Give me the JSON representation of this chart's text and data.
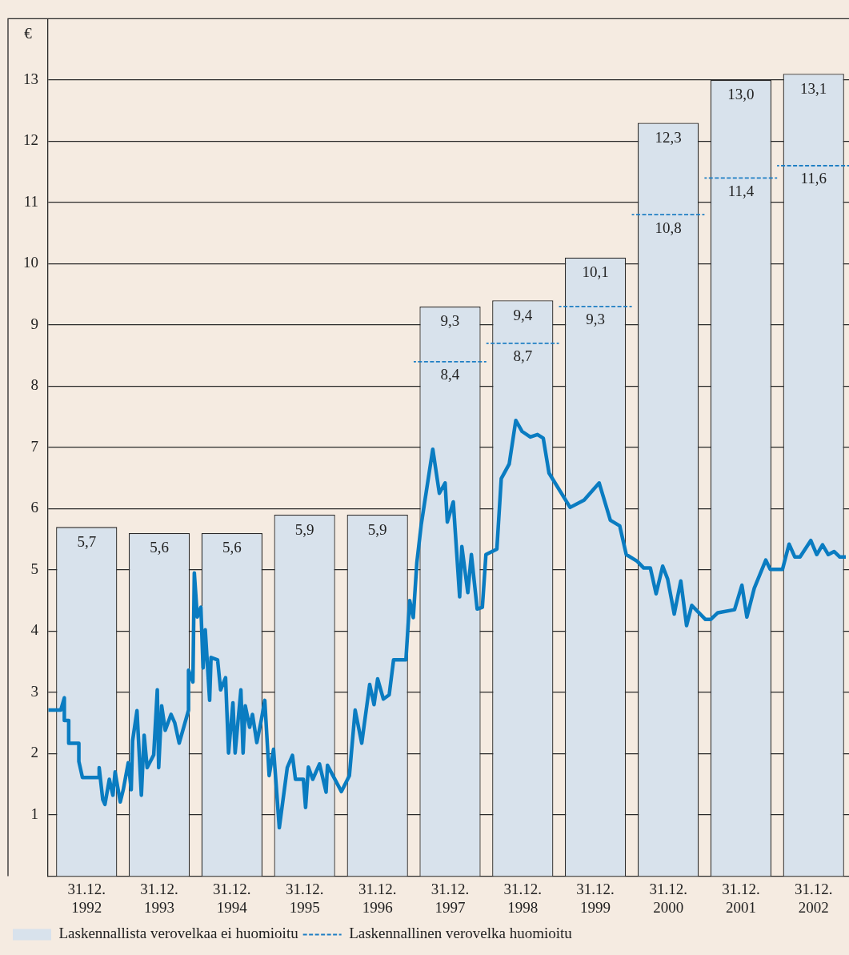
{
  "chart_data": {
    "type": "bar",
    "ylabel": "€",
    "x": [
      "1992-12-31",
      "1993-12-31",
      "1994-12-31",
      "1995-12-31",
      "1996-12-31",
      "1997-12-31",
      "1998-12-31",
      "1999-12-31",
      "2000-12-31",
      "2001-12-31",
      "2002-12-31"
    ],
    "xlim": [
      "1992-06-20",
      "2003-06-27"
    ],
    "xticks": [
      {
        "value": "1992-12-31",
        "label": "31.12.\n1992"
      },
      {
        "value": "1993-12-31",
        "label": "31.12.\n1993"
      },
      {
        "value": "1994-12-31",
        "label": "31.12.\n1994"
      },
      {
        "value": "1995-12-31",
        "label": "31.12.\n1995"
      },
      {
        "value": "1996-12-31",
        "label": "31.12.\n1996"
      },
      {
        "value": "1997-12-31",
        "label": "31.12.\n1997"
      },
      {
        "value": "1998-12-31",
        "label": "31.12.\n1998"
      },
      {
        "value": "1999-12-31",
        "label": "31.12.\n1999"
      },
      {
        "value": "2000-12-31",
        "label": "31.12.\n2000"
      },
      {
        "value": "2001-12-31",
        "label": "31.12.\n2001"
      },
      {
        "value": "2002-12-31",
        "label": "31.12.\n2002"
      }
    ],
    "ylim": [
      0,
      14
    ],
    "yticks": [
      1,
      2,
      3,
      4,
      5,
      6,
      7,
      8,
      9,
      10,
      11,
      12,
      13
    ],
    "grid": "y",
    "legend": "bottom left",
    "series": [
      {
        "name": "Laskennallista verovelkaa ei huomioitu",
        "color": "#d8e2ec",
        "values": [
          5.7,
          5.6,
          5.6,
          5.9,
          5.9,
          9.3,
          9.4,
          10.1,
          12.3,
          13.0,
          13.1
        ],
        "value_labels": [
          "5,7",
          "5,6",
          "5,6",
          "5,9",
          "5,9",
          "9,3",
          "9,4",
          "10,1",
          "12,3",
          "13,0",
          "13,1"
        ]
      },
      {
        "name": "Laskennallinen verovelka huomioitu",
        "type": "line",
        "line_style": "dashed",
        "color": "#1f7fc4",
        "x": [
          "1997-07-01",
          "1997-12-31",
          "1998-07-01"
        ],
        "values": [
          8.4,
          8.4,
          8.4
        ],
        "value_labels": [
          null,
          "8,4",
          null
        ]
      },
      {
        "type": "line",
        "line_style": "dashed",
        "color": "#1f7fc4",
        "x": [
          "1998-07-01",
          "1998-12-31",
          "1999-07-01"
        ],
        "values": [
          8.7,
          8.7,
          8.7
        ],
        "value_labels": [
          null,
          "8,7",
          null
        ]
      },
      {
        "type": "line",
        "line_style": "dashed",
        "color": "#1f7fc4",
        "x": [
          "1999-07-01",
          "1999-12-31",
          "2000-07-01"
        ],
        "values": [
          9.3,
          9.3,
          9.3
        ],
        "value_labels": [
          null,
          "9,3",
          null
        ]
      },
      {
        "type": "line",
        "line_style": "dashed",
        "color": "#1f7fc4",
        "x": [
          "2000-07-01",
          "2000-12-31",
          "2001-07-01"
        ],
        "values": [
          10.8,
          10.8,
          10.8
        ],
        "value_labels": [
          null,
          "10,8",
          null
        ]
      },
      {
        "type": "line",
        "line_style": "dashed",
        "color": "#1f7fc4",
        "x": [
          "2001-07-01",
          "2001-12-31",
          "2002-07-01"
        ],
        "values": [
          11.4,
          11.4,
          11.4
        ],
        "value_labels": [
          null,
          "11,4",
          null
        ]
      },
      {
        "type": "line",
        "line_style": "dashed",
        "color": "#1f7fc4",
        "x": [
          "2002-07-01",
          "2002-12-31",
          "2003-06-27"
        ],
        "values": [
          11.6,
          11.6,
          11.6
        ],
        "value_labels": [
          null,
          "11,6",
          null
        ]
      },
      {
        "type": "line",
        "color": "#0a7cc1",
        "x": [
          "1992-06-22",
          "1992-08-23",
          "1992-09-10",
          "1992-09-10",
          "1992-10-02",
          "1992-10-02",
          "1992-11-22",
          "1992-11-22",
          "1992-12-10",
          "1993-03-04",
          "1993-03-04",
          "1993-03-22",
          "1993-04-02",
          "1993-04-24",
          "1993-05-12",
          "1993-05-23",
          "1993-06-18",
          "1993-07-03",
          "1993-07-28",
          "1993-08-12",
          "1993-08-19",
          "1993-09-10",
          "1993-10-02",
          "1993-10-16",
          "1993-10-31",
          "1993-12-03",
          "1993-12-21",
          "1993-12-28",
          "1994-01-12",
          "1994-01-30",
          "1994-02-28",
          "1994-03-19",
          "1994-04-10",
          "1994-05-27",
          "1994-05-27",
          "1994-06-18",
          "1994-06-25",
          "1994-07-10",
          "1994-07-28",
          "1994-08-08",
          "1994-08-19",
          "1994-09-10",
          "1994-09-17",
          "1994-10-20",
          "1994-11-04",
          "1994-11-29",
          "1994-12-14",
          "1995-01-05",
          "1995-01-16",
          "1995-02-14",
          "1995-02-25",
          "1995-03-08",
          "1995-03-30",
          "1995-04-13",
          "1995-05-05",
          "1995-05-27",
          "1995-06-14",
          "1995-07-06",
          "1995-07-28",
          "1995-08-26",
          "1995-10-05",
          "1995-10-31",
          "1995-11-15",
          "1995-12-25",
          "1996-01-05",
          "1996-01-19",
          "1996-02-10",
          "1996-03-15",
          "1996-04-17",
          "1996-04-24",
          "1996-07-03",
          "1996-08-12",
          "1996-09-10",
          "1996-10-13",
          "1996-11-22",
          "1996-12-14",
          "1997-01-01",
          "1997-01-30",
          "1997-02-28",
          "1997-03-22",
          "1997-05-23",
          "1997-06-11",
          "1997-06-29",
          "1997-07-17",
          "1997-08-08",
          "1997-10-05",
          "1997-11-07",
          "1997-12-06",
          "1997-12-17",
          "1998-01-16",
          "1998-02-17",
          "1998-02-28",
          "1998-03-30",
          "1998-04-17",
          "1998-05-16",
          "1998-06-11",
          "1998-06-29",
          "1998-08-23",
          "1998-09-14",
          "1998-10-24",
          "1998-11-26",
          "1998-12-28",
          "1999-02-07",
          "1999-03-15",
          "1999-04-13",
          "1999-05-12",
          "1999-08-26",
          "1999-11-04",
          "2000-01-19",
          "2000-03-15",
          "2000-05-01",
          "2000-06-03",
          "2000-07-28",
          "2000-08-30",
          "2000-10-02",
          "2000-10-31",
          "2000-12-03",
          "2000-12-28",
          "2001-01-30",
          "2001-03-04",
          "2001-04-02",
          "2001-04-28",
          "2001-07-06",
          "2001-08-01",
          "2001-09-06",
          "2001-11-29",
          "2002-01-05",
          "2002-01-30",
          "2002-03-08",
          "2002-05-05",
          "2002-05-27",
          "2002-07-28",
          "2002-08-30",
          "2002-09-28",
          "2002-10-24",
          "2002-12-17",
          "2003-01-16",
          "2003-02-14",
          "2003-03-15",
          "2003-04-13",
          "2003-05-12",
          "2003-06-11"
        ],
        "values": [
          2.71,
          2.71,
          2.91,
          2.54,
          2.54,
          2.17,
          2.17,
          1.87,
          1.61,
          1.61,
          1.77,
          1.25,
          1.17,
          1.58,
          1.32,
          1.7,
          1.21,
          1.41,
          1.85,
          1.41,
          2.21,
          2.7,
          1.32,
          2.3,
          1.77,
          1.98,
          3.04,
          1.77,
          2.78,
          2.38,
          2.64,
          2.5,
          2.17,
          2.71,
          3.36,
          3.17,
          4.95,
          4.23,
          4.39,
          3.4,
          4.02,
          2.87,
          3.57,
          3.53,
          3.04,
          3.24,
          2.01,
          2.83,
          2.01,
          3.04,
          2.01,
          2.78,
          2.43,
          2.64,
          2.18,
          2.54,
          2.87,
          1.64,
          2.07,
          0.79,
          1.77,
          1.97,
          1.58,
          1.58,
          1.12,
          1.78,
          1.58,
          1.83,
          1.37,
          1.81,
          1.38,
          1.64,
          2.71,
          2.17,
          3.13,
          2.8,
          3.22,
          2.89,
          2.96,
          3.53,
          3.53,
          4.5,
          4.22,
          5.12,
          5.74,
          6.97,
          6.25,
          6.42,
          5.78,
          6.11,
          4.56,
          5.38,
          4.63,
          5.25,
          4.36,
          4.39,
          5.25,
          5.34,
          6.49,
          6.73,
          7.44,
          7.26,
          7.17,
          7.21,
          7.15,
          6.58,
          6.02,
          6.14,
          6.42,
          5.81,
          5.72,
          5.25,
          5.14,
          5.03,
          5.03,
          4.61,
          5.06,
          4.85,
          4.28,
          4.82,
          4.09,
          4.42,
          4.19,
          4.19,
          4.3,
          4.35,
          4.75,
          4.23,
          4.7,
          5.16,
          5.01,
          5.01,
          5.42,
          5.21,
          5.21,
          5.48,
          5.25,
          5.41,
          5.25,
          5.3,
          5.21,
          5.21
        ]
      }
    ]
  }
}
